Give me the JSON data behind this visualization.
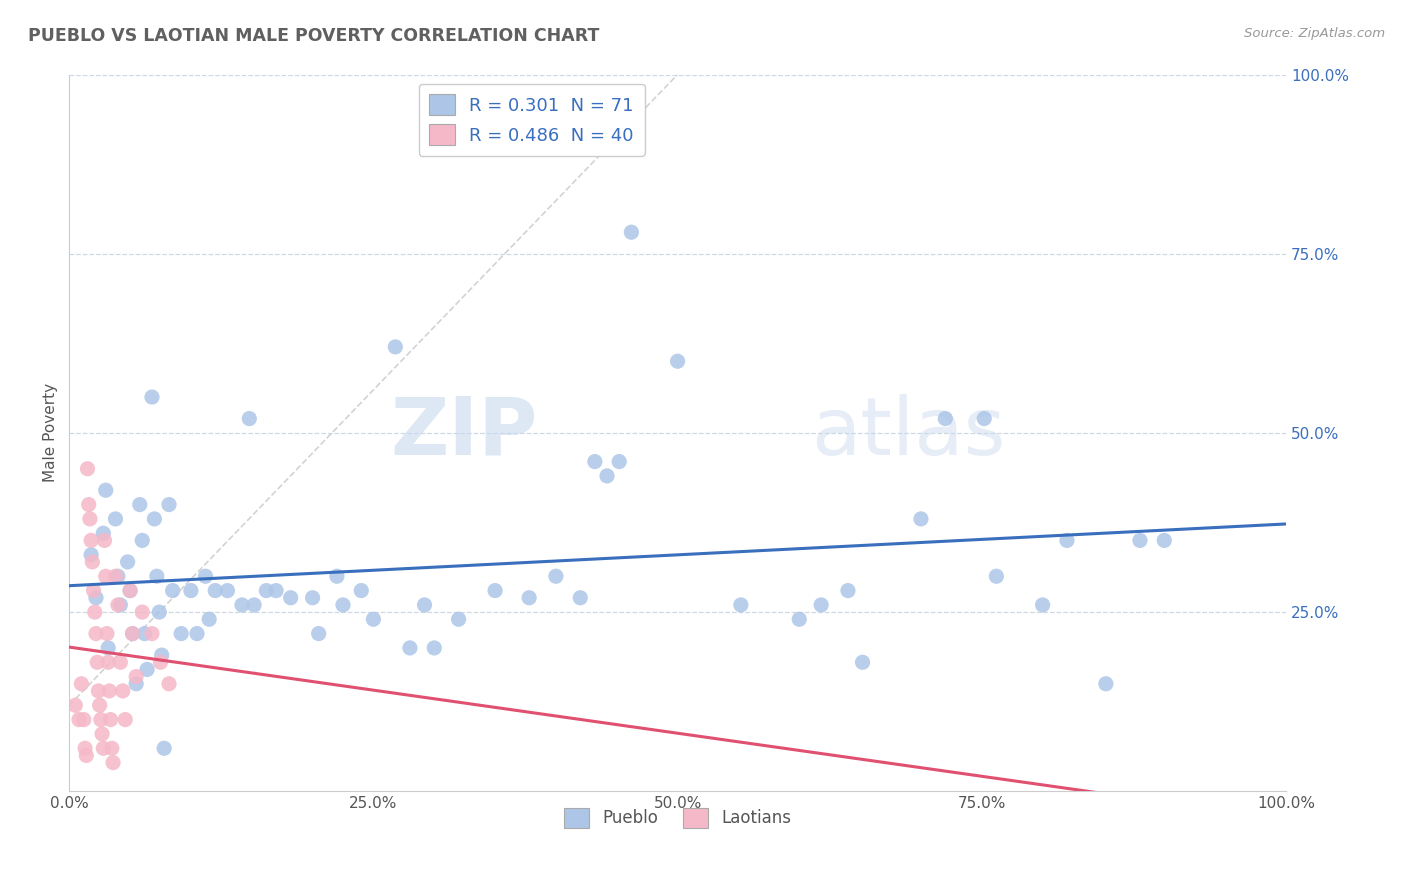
{
  "title": "PUEBLO VS LAOTIAN MALE POVERTY CORRELATION CHART",
  "source": "Source: ZipAtlas.com",
  "ylabel": "Male Poverty",
  "watermark_zip": "ZIP",
  "watermark_atlas": "atlas",
  "pueblo_R": 0.301,
  "pueblo_N": 71,
  "laotian_R": 0.486,
  "laotian_N": 40,
  "pueblo_color": "#adc6e8",
  "pueblo_line_color": "#3a6fbe",
  "laotian_color": "#f5b8c8",
  "laotian_line_color": "#e05070",
  "background_color": "#ffffff",
  "grid_color": "#c8d4e0",
  "legend_text_color": "#3a6fbe",
  "right_axis_color": "#3a6fbe",
  "xlim": [
    0,
    1
  ],
  "ylim": [
    0,
    1
  ],
  "pueblo_scatter": [
    [
      0.018,
      0.33
    ],
    [
      0.022,
      0.27
    ],
    [
      0.028,
      0.36
    ],
    [
      0.03,
      0.42
    ],
    [
      0.032,
      0.2
    ],
    [
      0.038,
      0.38
    ],
    [
      0.04,
      0.3
    ],
    [
      0.042,
      0.26
    ],
    [
      0.048,
      0.32
    ],
    [
      0.05,
      0.28
    ],
    [
      0.052,
      0.22
    ],
    [
      0.055,
      0.15
    ],
    [
      0.058,
      0.4
    ],
    [
      0.06,
      0.35
    ],
    [
      0.062,
      0.22
    ],
    [
      0.064,
      0.17
    ],
    [
      0.068,
      0.55
    ],
    [
      0.07,
      0.38
    ],
    [
      0.072,
      0.3
    ],
    [
      0.074,
      0.25
    ],
    [
      0.076,
      0.19
    ],
    [
      0.078,
      0.06
    ],
    [
      0.082,
      0.4
    ],
    [
      0.085,
      0.28
    ],
    [
      0.092,
      0.22
    ],
    [
      0.1,
      0.28
    ],
    [
      0.105,
      0.22
    ],
    [
      0.112,
      0.3
    ],
    [
      0.115,
      0.24
    ],
    [
      0.12,
      0.28
    ],
    [
      0.13,
      0.28
    ],
    [
      0.142,
      0.26
    ],
    [
      0.148,
      0.52
    ],
    [
      0.152,
      0.26
    ],
    [
      0.162,
      0.28
    ],
    [
      0.17,
      0.28
    ],
    [
      0.182,
      0.27
    ],
    [
      0.2,
      0.27
    ],
    [
      0.205,
      0.22
    ],
    [
      0.22,
      0.3
    ],
    [
      0.225,
      0.26
    ],
    [
      0.24,
      0.28
    ],
    [
      0.25,
      0.24
    ],
    [
      0.268,
      0.62
    ],
    [
      0.28,
      0.2
    ],
    [
      0.292,
      0.26
    ],
    [
      0.3,
      0.2
    ],
    [
      0.32,
      0.24
    ],
    [
      0.35,
      0.28
    ],
    [
      0.378,
      0.27
    ],
    [
      0.4,
      0.3
    ],
    [
      0.42,
      0.27
    ],
    [
      0.432,
      0.46
    ],
    [
      0.442,
      0.44
    ],
    [
      0.452,
      0.46
    ],
    [
      0.462,
      0.78
    ],
    [
      0.5,
      0.6
    ],
    [
      0.552,
      0.26
    ],
    [
      0.6,
      0.24
    ],
    [
      0.618,
      0.26
    ],
    [
      0.64,
      0.28
    ],
    [
      0.652,
      0.18
    ],
    [
      0.7,
      0.38
    ],
    [
      0.72,
      0.52
    ],
    [
      0.752,
      0.52
    ],
    [
      0.762,
      0.3
    ],
    [
      0.8,
      0.26
    ],
    [
      0.82,
      0.35
    ],
    [
      0.852,
      0.15
    ],
    [
      0.88,
      0.35
    ],
    [
      0.9,
      0.35
    ]
  ],
  "laotian_scatter": [
    [
      0.005,
      0.12
    ],
    [
      0.008,
      0.1
    ],
    [
      0.01,
      0.15
    ],
    [
      0.012,
      0.1
    ],
    [
      0.013,
      0.06
    ],
    [
      0.014,
      0.05
    ],
    [
      0.015,
      0.45
    ],
    [
      0.016,
      0.4
    ],
    [
      0.017,
      0.38
    ],
    [
      0.018,
      0.35
    ],
    [
      0.019,
      0.32
    ],
    [
      0.02,
      0.28
    ],
    [
      0.021,
      0.25
    ],
    [
      0.022,
      0.22
    ],
    [
      0.023,
      0.18
    ],
    [
      0.024,
      0.14
    ],
    [
      0.025,
      0.12
    ],
    [
      0.026,
      0.1
    ],
    [
      0.027,
      0.08
    ],
    [
      0.028,
      0.06
    ],
    [
      0.029,
      0.35
    ],
    [
      0.03,
      0.3
    ],
    [
      0.031,
      0.22
    ],
    [
      0.032,
      0.18
    ],
    [
      0.033,
      0.14
    ],
    [
      0.034,
      0.1
    ],
    [
      0.035,
      0.06
    ],
    [
      0.036,
      0.04
    ],
    [
      0.038,
      0.3
    ],
    [
      0.04,
      0.26
    ],
    [
      0.042,
      0.18
    ],
    [
      0.044,
      0.14
    ],
    [
      0.046,
      0.1
    ],
    [
      0.05,
      0.28
    ],
    [
      0.052,
      0.22
    ],
    [
      0.055,
      0.16
    ],
    [
      0.06,
      0.25
    ],
    [
      0.068,
      0.22
    ],
    [
      0.075,
      0.18
    ],
    [
      0.082,
      0.15
    ]
  ],
  "diag_line": [
    [
      0.0,
      0.12
    ],
    [
      0.5,
      1.0
    ]
  ]
}
